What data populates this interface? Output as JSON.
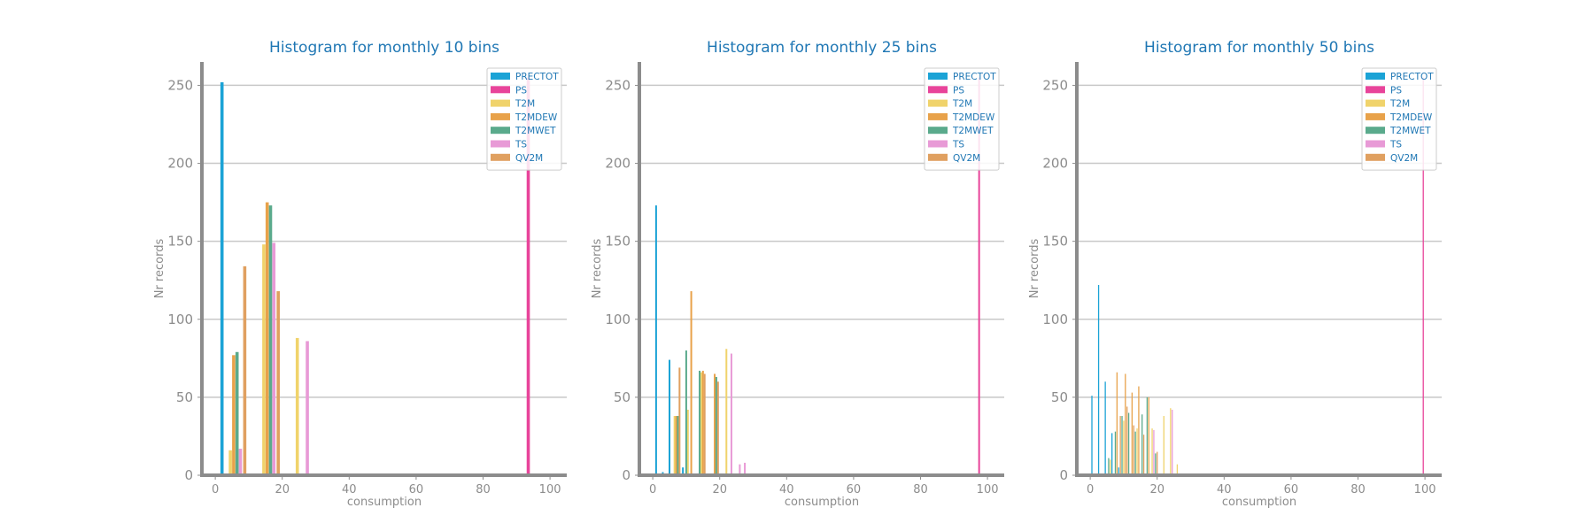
{
  "chart_data": [
    {
      "type": "bar",
      "title": "Histogram for monthly 10 bins",
      "xlabel": "consumption",
      "ylabel": "Nr records",
      "xlim": [
        -4,
        105
      ],
      "ylim": [
        0,
        265
      ],
      "xticks": [
        "0",
        "20",
        "40",
        "60",
        "80",
        "100"
      ],
      "yticks": [
        "0",
        "50",
        "100",
        "150",
        "200",
        "250"
      ],
      "grid": "horizontal",
      "legend_position": "top-right",
      "series": [
        {
          "name": "PRECTOT",
          "color": "#1ba3d6",
          "points": [
            [
              2.0,
              252
            ]
          ]
        },
        {
          "name": "PS",
          "color": "#e8449a",
          "points": [
            [
              93.5,
              255
            ]
          ]
        },
        {
          "name": "T2M",
          "color": "#f0d36b",
          "points": [
            [
              4.5,
              16
            ],
            [
              14.5,
              148
            ],
            [
              24.5,
              88
            ]
          ]
        },
        {
          "name": "T2MDEW",
          "color": "#e8a24a",
          "points": [
            [
              5.5,
              77
            ],
            [
              15.5,
              175
            ]
          ]
        },
        {
          "name": "T2MWET",
          "color": "#5aaa8c",
          "points": [
            [
              6.5,
              79
            ],
            [
              16.5,
              173
            ]
          ]
        },
        {
          "name": "TS",
          "color": "#e89ad6",
          "points": [
            [
              7.5,
              17
            ],
            [
              17.5,
              149
            ],
            [
              27.5,
              86
            ]
          ]
        },
        {
          "name": "QV2M",
          "color": "#e0a060",
          "points": [
            [
              8.8,
              134
            ],
            [
              18.8,
              118
            ]
          ]
        }
      ]
    },
    {
      "type": "bar",
      "title": "Histogram for monthly 25 bins",
      "xlabel": "consumption",
      "ylabel": "Nr records",
      "xlim": [
        -4,
        105
      ],
      "ylim": [
        0,
        265
      ],
      "xticks": [
        "0",
        "20",
        "40",
        "60",
        "80",
        "100"
      ],
      "yticks": [
        "0",
        "50",
        "100",
        "150",
        "200",
        "250"
      ],
      "grid": "horizontal",
      "legend_position": "top-right",
      "series": [
        {
          "name": "PRECTOT",
          "color": "#1ba3d6",
          "points": [
            [
              1.0,
              173
            ],
            [
              3.0,
              2
            ],
            [
              5.0,
              74
            ],
            [
              9.0,
              5
            ]
          ]
        },
        {
          "name": "PS",
          "color": "#e8449a",
          "points": [
            [
              97.5,
              255
            ]
          ]
        },
        {
          "name": "T2M",
          "color": "#f0d36b",
          "points": [
            [
              6.5,
              38
            ],
            [
              10.5,
              42
            ],
            [
              14.5,
              66
            ],
            [
              22.0,
              81
            ]
          ]
        },
        {
          "name": "T2MDEW",
          "color": "#e8a24a",
          "points": [
            [
              7.0,
              38
            ],
            [
              11.5,
              118
            ],
            [
              15.0,
              67
            ],
            [
              18.5,
              65
            ]
          ]
        },
        {
          "name": "T2MWET",
          "color": "#5aaa8c",
          "points": [
            [
              7.5,
              38
            ],
            [
              10.0,
              80
            ],
            [
              14.0,
              67
            ],
            [
              19.0,
              63
            ]
          ]
        },
        {
          "name": "TS",
          "color": "#e89ad6",
          "points": [
            [
              23.5,
              78
            ],
            [
              26.0,
              7
            ],
            [
              27.5,
              8
            ]
          ]
        },
        {
          "name": "QV2M",
          "color": "#e0a060",
          "points": [
            [
              8.0,
              69
            ],
            [
              15.5,
              65
            ],
            [
              19.5,
              60
            ]
          ]
        }
      ]
    },
    {
      "type": "bar",
      "title": "Histogram for monthly 50 bins",
      "xlabel": "consumption",
      "ylabel": "Nr records",
      "xlim": [
        -4,
        105
      ],
      "ylim": [
        0,
        265
      ],
      "xticks": [
        "0",
        "20",
        "40",
        "60",
        "80",
        "100"
      ],
      "yticks": [
        "0",
        "50",
        "100",
        "150",
        "200",
        "250"
      ],
      "grid": "horizontal",
      "legend_position": "top-right",
      "series": [
        {
          "name": "PRECTOT",
          "color": "#1ba3d6",
          "points": [
            [
              0.5,
              51
            ],
            [
              2.5,
              122
            ],
            [
              4.5,
              60
            ],
            [
              6.5,
              27
            ],
            [
              8.5,
              5
            ]
          ]
        },
        {
          "name": "PS",
          "color": "#e8449a",
          "points": [
            [
              99.5,
              255
            ]
          ]
        },
        {
          "name": "T2M",
          "color": "#f0d36b",
          "points": [
            [
              6.0,
              10
            ],
            [
              10.0,
              35
            ],
            [
              14.0,
              30
            ],
            [
              18.5,
              30
            ],
            [
              22.0,
              38
            ],
            [
              24.0,
              43
            ],
            [
              26.0,
              7
            ]
          ]
        },
        {
          "name": "T2MDEW",
          "color": "#e8a24a",
          "points": [
            [
              8.0,
              66
            ],
            [
              10.5,
              65
            ],
            [
              12.5,
              53
            ],
            [
              14.5,
              57
            ],
            [
              17.5,
              50
            ]
          ]
        },
        {
          "name": "T2MWET",
          "color": "#5aaa8c",
          "points": [
            [
              5.5,
              11
            ],
            [
              7.5,
              28
            ],
            [
              9.5,
              38
            ],
            [
              11.5,
              40
            ],
            [
              13.5,
              28
            ],
            [
              15.5,
              39
            ],
            [
              17.0,
              50
            ],
            [
              19.5,
              14
            ]
          ]
        },
        {
          "name": "TS",
          "color": "#e89ad6",
          "points": [
            [
              19.0,
              29
            ],
            [
              24.5,
              42
            ]
          ]
        },
        {
          "name": "QV2M",
          "color": "#e0a060",
          "points": [
            [
              9.0,
              38
            ],
            [
              11.0,
              44
            ],
            [
              13.0,
              32
            ],
            [
              16.0,
              26
            ],
            [
              20.0,
              15
            ]
          ]
        }
      ]
    }
  ]
}
